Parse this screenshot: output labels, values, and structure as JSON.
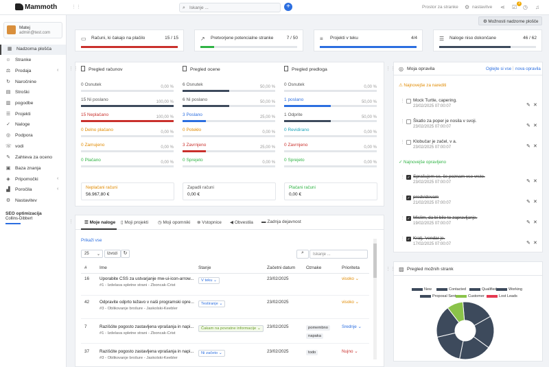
{
  "app": {
    "brand": "Mammoth"
  },
  "topbar": {
    "search_placeholder": "Iskanje ...",
    "link1": "Prostor za stranke",
    "link2": "nastavitve",
    "notif_count": "3"
  },
  "user": {
    "name": "Matej",
    "email": "admin@test.com"
  },
  "nav": [
    {
      "label": "Nadzorna plošča",
      "icon": "dashboard-icon",
      "glyph": "▦",
      "active": true,
      "chev": false
    },
    {
      "label": "Stranke",
      "icon": "user-icon",
      "glyph": "☺",
      "active": false,
      "chev": false
    },
    {
      "label": "Prodaja",
      "icon": "scale-icon",
      "glyph": "⚖",
      "active": false,
      "chev": true
    },
    {
      "label": "Naročnine",
      "icon": "refresh-icon",
      "glyph": "↻",
      "active": false,
      "chev": false
    },
    {
      "label": "Stroški",
      "icon": "file-icon",
      "glyph": "▤",
      "active": false,
      "chev": false
    },
    {
      "label": "pogodbe",
      "icon": "contract-icon",
      "glyph": "▥",
      "active": false,
      "chev": false
    },
    {
      "label": "Projekti",
      "icon": "bars-icon",
      "glyph": "☰",
      "active": false,
      "chev": false
    },
    {
      "label": "Naloge",
      "icon": "check-icon",
      "glyph": "✓",
      "active": false,
      "chev": false
    },
    {
      "label": "Podpora",
      "icon": "support-icon",
      "glyph": "◎",
      "active": false,
      "chev": false
    },
    {
      "label": "vodi",
      "icon": "tty-icon",
      "glyph": "☏",
      "active": false,
      "chev": false
    },
    {
      "label": "Zahteva za oceno",
      "icon": "edit-icon",
      "glyph": "✎",
      "active": false,
      "chev": false
    },
    {
      "label": "Baza znanja",
      "icon": "folder-icon",
      "glyph": "▣",
      "active": false,
      "chev": false
    },
    {
      "label": "Pripomočki",
      "icon": "gift-icon",
      "glyph": "◈",
      "active": false,
      "chev": true
    },
    {
      "label": "Poročila",
      "icon": "chart-icon",
      "glyph": "▟",
      "active": false,
      "chev": true
    },
    {
      "label": "Nastavitev",
      "icon": "gear-icon",
      "glyph": "⚙",
      "active": false,
      "chev": false
    }
  ],
  "seo": {
    "title": "SEO optimizacija",
    "name": "Collins-Dibbert"
  },
  "options_button": "Možnosti nadzorne plošče",
  "kpis": [
    {
      "label": "Računi, ki čakajo na plačilo",
      "value": "15 / 15",
      "icon": "invoice-icon",
      "glyph": "▭",
      "color": "#c9302c",
      "progress": 1.0
    },
    {
      "label": "Pretvorjene potencialne stranke",
      "value": "7 / 50",
      "icon": "trend-icon",
      "glyph": "↗",
      "color": "#2fb344",
      "progress": 0.14
    },
    {
      "label": "Projekti v teku",
      "value": "4/4",
      "icon": "sliders-icon",
      "glyph": "≡",
      "color": "#2b6ee0",
      "progress": 1.0
    },
    {
      "label": "Naloge niso dokončane",
      "value": "46 / 62",
      "icon": "tasks-icon",
      "glyph": "☰",
      "color": "#3d4a5c",
      "progress": 0.74
    }
  ],
  "overview": [
    {
      "title": "Pregled računov",
      "rows": [
        {
          "n": "0",
          "label": "Osnutek",
          "pct": "0,00 %",
          "p": 0.0,
          "color": "#444",
          "tcolor": "#555"
        },
        {
          "n": "15",
          "label": "Ni poslano",
          "pct": "100,00 %",
          "p": 1.0,
          "color": "#3d4a5c",
          "tcolor": "#555"
        },
        {
          "n": "15",
          "label": "Neplačano",
          "pct": "100,00 %",
          "p": 1.0,
          "color": "#c9302c",
          "tcolor": "#c9302c"
        },
        {
          "n": "0",
          "label": "Delno plačano",
          "pct": "0,00 %",
          "p": 0.0,
          "color": "#e08a00",
          "tcolor": "#e08a00"
        },
        {
          "n": "0",
          "label": "Zamujeno",
          "pct": "0,00 %",
          "p": 0.0,
          "color": "#e08a00",
          "tcolor": "#e08a00"
        },
        {
          "n": "0",
          "label": "Plačano",
          "pct": "0,00 %",
          "p": 0.0,
          "color": "#2fb344",
          "tcolor": "#2fb344"
        }
      ]
    },
    {
      "title": "Pregled ocene",
      "rows": [
        {
          "n": "6",
          "label": "Osnutek",
          "pct": "50,00 %",
          "p": 0.5,
          "color": "#3d4a5c",
          "tcolor": "#555"
        },
        {
          "n": "6",
          "label": "Ni poslano",
          "pct": "50,00 %",
          "p": 0.5,
          "color": "#3d4a5c",
          "tcolor": "#555"
        },
        {
          "n": "3",
          "label": "Poslano",
          "pct": "25,00 %",
          "p": 0.25,
          "color": "#2b6ee0",
          "tcolor": "#2b6ee0"
        },
        {
          "n": "0",
          "label": "Potekło",
          "pct": "0,00 %",
          "p": 0.0,
          "color": "#e08a00",
          "tcolor": "#e08a00"
        },
        {
          "n": "3",
          "label": "Zavrnjeno",
          "pct": "25,00 %",
          "p": 0.25,
          "color": "#c9302c",
          "tcolor": "#c9302c"
        },
        {
          "n": "0",
          "label": "Sprejeto",
          "pct": "0,00 %",
          "p": 0.0,
          "color": "#2fb344",
          "tcolor": "#2fb344"
        }
      ]
    },
    {
      "title": "Pregled predloga",
      "rows": [
        {
          "n": "0",
          "label": "Osnutek",
          "pct": "0,00 %",
          "p": 0.0,
          "color": "#444",
          "tcolor": "#555"
        },
        {
          "n": "1",
          "label": "poslano",
          "pct": "50,00 %",
          "p": 0.5,
          "color": "#2b6ee0",
          "tcolor": "#2b6ee0"
        },
        {
          "n": "1",
          "label": "Odprite",
          "pct": "50,00 %",
          "p": 0.5,
          "color": "#3d4a5c",
          "tcolor": "#555"
        },
        {
          "n": "0",
          "label": "Revidirano",
          "pct": "0,00 %",
          "p": 0.0,
          "color": "#17a2b8",
          "tcolor": "#17a2b8"
        },
        {
          "n": "0",
          "label": "Zavrnjeno",
          "pct": "0,00 %",
          "p": 0.0,
          "color": "#c9302c",
          "tcolor": "#c9302c"
        },
        {
          "n": "0",
          "label": "Sprejeto",
          "pct": "0,00 %",
          "p": 0.0,
          "color": "#2fb344",
          "tcolor": "#2fb344"
        }
      ]
    }
  ],
  "summary": [
    {
      "label": "Neplačani računi",
      "value": "56.967,80 €",
      "color": "#e08a00"
    },
    {
      "label": "Zapadli računi",
      "value": "0,00 €",
      "color": "#555"
    },
    {
      "label": "Plačani računi",
      "value": "0,00 €",
      "color": "#2fb344"
    }
  ],
  "tabs": [
    {
      "label": "Moje naloge",
      "icon": "list-icon",
      "glyph": "☰",
      "active": true
    },
    {
      "label": "Moji projekti",
      "icon": "book-icon",
      "glyph": "▯",
      "active": false
    },
    {
      "label": "Moji opomniki",
      "icon": "clock-icon",
      "glyph": "◷",
      "active": false
    },
    {
      "label": "Vstopnice",
      "icon": "ticket-icon",
      "glyph": "⊗",
      "active": false
    },
    {
      "label": "Obvestila",
      "icon": "megaphone-icon",
      "glyph": "◀",
      "active": false
    },
    {
      "label": "Zadnja dejavnost",
      "icon": "activity-icon",
      "glyph": "▬",
      "active": false
    }
  ],
  "tasks_table": {
    "show_all": "Prikaži vse",
    "page_size": "25",
    "export": "Izvozi",
    "search_placeholder": "Iskanje ...",
    "columns": [
      "#",
      "Ime",
      "Stanje",
      "Začetni datum",
      "Oznake",
      "Prioriteta"
    ],
    "rows": [
      {
        "id": "16",
        "name": "Uporabite CSS za ustvarjanje mw-ui-icon-arrow...",
        "sub": "#1 - Izdelava spletne strani - Zboncak-Crist",
        "status": "V teku",
        "date": "23/02/2025",
        "tags": [],
        "priority": "visoko",
        "pcolor": "#e08a00"
      },
      {
        "id": "42",
        "name": "Odpravite odprto težavo v naši programski opre...",
        "sub": "#3 - Oblikovanje brošure - Jaskolski-Keebler",
        "status": "Testiranje",
        "date": "23/02/2025",
        "tags": [],
        "priority": "visoko",
        "pcolor": "#e08a00"
      },
      {
        "id": "7",
        "name": "Razišćite pogosto zastavljena vprašanja in napi...",
        "sub": "#1 - Izdelava spletne strani - Zboncak-Crist",
        "status": "Čakam na povratne informacije",
        "date": "23/02/2025",
        "tags": [
          "pomembno",
          "napaka"
        ],
        "priority": "Srednje",
        "pcolor": "#2b6ee0"
      },
      {
        "id": "37",
        "name": "Razišćite pogosto zastavljena vprašanja in napi...",
        "sub": "#3 - Oblikovanje brošure - Jaskolski-Keebler",
        "status": "Ni začeto",
        "date": "23/02/2025",
        "tags": [
          "todo"
        ],
        "priority": "Nujno",
        "pcolor": "#c9302c"
      }
    ]
  },
  "todos": {
    "title": "Moja opravila",
    "view_all": "Oglejte si vse",
    "new": "nova opravila",
    "pending_title": "Najnovejše za narediti",
    "done_title": "Najnovejše opravljeno",
    "pending": [
      {
        "text": "Mock Turtle, capering.",
        "date": "23/02/2025 07:00:07"
      },
      {
        "text": "Škatlo za poper je nosila v svoji.",
        "date": "23/02/2025 07:00:07"
      },
      {
        "text": "Klobučar je začel, v a.",
        "date": "23/02/2025 07:00:07"
      }
    ],
    "done": [
      {
        "text": "Sprašujem se, če poznam vse vrste.",
        "date": "23/02/2025 07:00:07"
      },
      {
        "text": "predvidevam",
        "date": "21/02/2025 07:00:07"
      },
      {
        "text": "Mislim, da bi bilo to zapravljanje.",
        "date": "19/02/2025 07:00:07"
      },
      {
        "text": "Kralj, 'vendar je.",
        "date": "17/02/2025 07:00:07"
      }
    ]
  },
  "leads_chart": {
    "title": "Pregled možnih strank",
    "chart_data": {
      "type": "pie",
      "legend": [
        {
          "name": "New",
          "color": "#3d4a5c"
        },
        {
          "name": "Contacted",
          "color": "#3d4a5c"
        },
        {
          "name": "Qualified",
          "color": "#3d4a5c"
        },
        {
          "name": "Working",
          "color": "#3d4a5c"
        },
        {
          "name": "Proposal Sent",
          "color": "#3d4a5c"
        },
        {
          "name": "Customer",
          "color": "#8bc34a"
        },
        {
          "name": "Lost Leads",
          "color": "#e53950"
        }
      ],
      "values": [
        8,
        8,
        8,
        8,
        8,
        4,
        0
      ]
    }
  }
}
